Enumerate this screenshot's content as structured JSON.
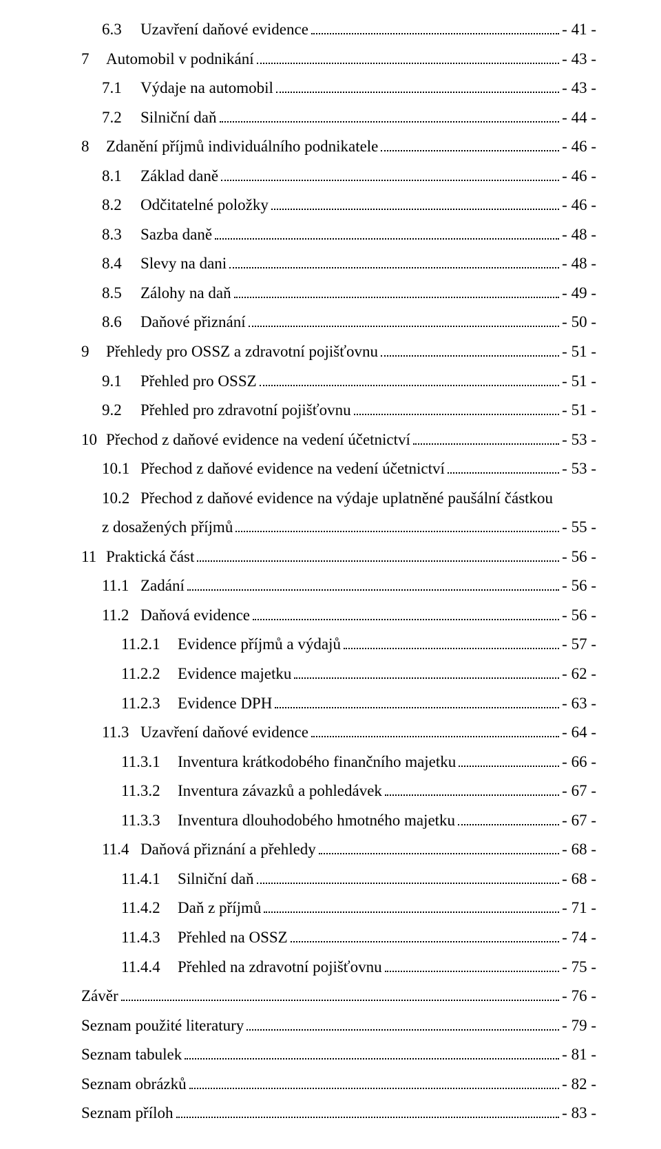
{
  "toc": [
    {
      "level": "lvl-1",
      "num": "6.3",
      "title": "Uzavření daňové evidence",
      "page": "- 41 -",
      "dots": true
    },
    {
      "level": "lvl-top",
      "num": "7",
      "title": "Automobil v podnikání",
      "page": "- 43 -",
      "dots": true
    },
    {
      "level": "lvl-1",
      "num": "7.1",
      "title": "Výdaje na automobil",
      "page": "- 43 -",
      "dots": true
    },
    {
      "level": "lvl-1",
      "num": "7.2",
      "title": "Silniční daň",
      "page": "- 44 -",
      "dots": true
    },
    {
      "level": "lvl-top",
      "num": "8",
      "title": "Zdanění příjmů individuálního podnikatele",
      "page": "- 46 -",
      "dots": true
    },
    {
      "level": "lvl-1",
      "num": "8.1",
      "title": "Základ daně",
      "page": "- 46 -",
      "dots": true
    },
    {
      "level": "lvl-1",
      "num": "8.2",
      "title": "Odčitatelné položky",
      "page": "- 46 -",
      "dots": true
    },
    {
      "level": "lvl-1",
      "num": "8.3",
      "title": "Sazba daně",
      "page": "- 48 -",
      "dots": true
    },
    {
      "level": "lvl-1",
      "num": "8.4",
      "title": "Slevy na dani",
      "page": "- 48 -",
      "dots": true
    },
    {
      "level": "lvl-1",
      "num": "8.5",
      "title": "Zálohy na daň",
      "page": "- 49 -",
      "dots": true
    },
    {
      "level": "lvl-1",
      "num": "8.6",
      "title": "Daňové přiznání",
      "page": "- 50 -",
      "dots": true
    },
    {
      "level": "lvl-top",
      "num": "9",
      "title": "Přehledy pro OSSZ a zdravotní pojišťovnu",
      "page": "- 51 -",
      "dots": true
    },
    {
      "level": "lvl-1",
      "num": "9.1",
      "title": "Přehled pro OSSZ",
      "page": "- 51 -",
      "dots": true
    },
    {
      "level": "lvl-1",
      "num": "9.2",
      "title": "Přehled pro zdravotní pojišťovnu",
      "page": "- 51 -",
      "dots": true
    },
    {
      "level": "lvl-top",
      "num": "10",
      "title": "Přechod z daňové evidence na vedení účetnictví",
      "page": "- 53 -",
      "dots": true
    },
    {
      "level": "lvl-1",
      "num": "10.1",
      "title": "Přechod z daňové evidence na vedení účetnictví",
      "page": "- 53 -",
      "dots": true
    },
    {
      "level": "lvl-1",
      "num": "10.2",
      "title": "Přechod  z daňové  evidence  na  výdaje  uplatněné  paušální  částkou",
      "title2": "z dosažených příjmů",
      "page": "- 55 -",
      "dots": true,
      "wrap": true
    },
    {
      "level": "lvl-top",
      "num": "11",
      "title": "Praktická část",
      "page": "- 56 -",
      "dots": true
    },
    {
      "level": "lvl-1",
      "num": "11.1",
      "title": "Zadání",
      "page": "- 56 -",
      "dots": true
    },
    {
      "level": "lvl-1",
      "num": "11.2",
      "title": "Daňová evidence",
      "page": "- 56 -",
      "dots": true
    },
    {
      "level": "lvl-2",
      "num": "11.2.1",
      "title": "Evidence příjmů a výdajů",
      "page": "- 57 -",
      "dots": true
    },
    {
      "level": "lvl-2",
      "num": "11.2.2",
      "title": "Evidence majetku",
      "page": "- 62 -",
      "dots": true
    },
    {
      "level": "lvl-2",
      "num": "11.2.3",
      "title": "Evidence DPH",
      "page": "- 63 -",
      "dots": true
    },
    {
      "level": "lvl-1",
      "num": "11.3",
      "title": "Uzavření daňové evidence",
      "page": "- 64 -",
      "dots": true
    },
    {
      "level": "lvl-2",
      "num": "11.3.1",
      "title": "Inventura krátkodobého finančního majetku",
      "page": "- 66 -",
      "dots": true
    },
    {
      "level": "lvl-2",
      "num": "11.3.2",
      "title": "Inventura závazků a pohledávek",
      "page": "- 67 -",
      "dots": true
    },
    {
      "level": "lvl-2",
      "num": "11.3.3",
      "title": "Inventura dlouhodobého hmotného majetku",
      "page": "- 67 -",
      "dots": true
    },
    {
      "level": "lvl-1",
      "num": "11.4",
      "title": "Daňová přiznání a přehledy",
      "page": "- 68 -",
      "dots": true
    },
    {
      "level": "lvl-2",
      "num": "11.4.1",
      "title": "Silniční daň",
      "page": "- 68 -",
      "dots": true
    },
    {
      "level": "lvl-2",
      "num": "11.4.2",
      "title": "Daň z příjmů",
      "page": "- 71 -",
      "dots": true
    },
    {
      "level": "lvl-2",
      "num": "11.4.3",
      "title": "Přehled na OSSZ",
      "page": "- 74 -",
      "dots": true
    },
    {
      "level": "lvl-2",
      "num": "11.4.4",
      "title": "Přehled na zdravotní pojišťovnu",
      "page": "- 75 -",
      "dots": true
    },
    {
      "level": "lvl-top",
      "num": "",
      "title": "Závěr",
      "page": "- 76 -",
      "dots": true
    },
    {
      "level": "lvl-top",
      "num": "",
      "title": "Seznam použité literatury",
      "page": "- 79 -",
      "dots": true
    },
    {
      "level": "lvl-top",
      "num": "",
      "title": "Seznam tabulek",
      "page": "- 81 -",
      "dots": true
    },
    {
      "level": "lvl-top",
      "num": "",
      "title": "Seznam obrázků",
      "page": "- 82 -",
      "dots": true
    },
    {
      "level": "lvl-top",
      "num": "",
      "title": "Seznam příloh",
      "page": "- 83 -",
      "dots": true
    }
  ]
}
